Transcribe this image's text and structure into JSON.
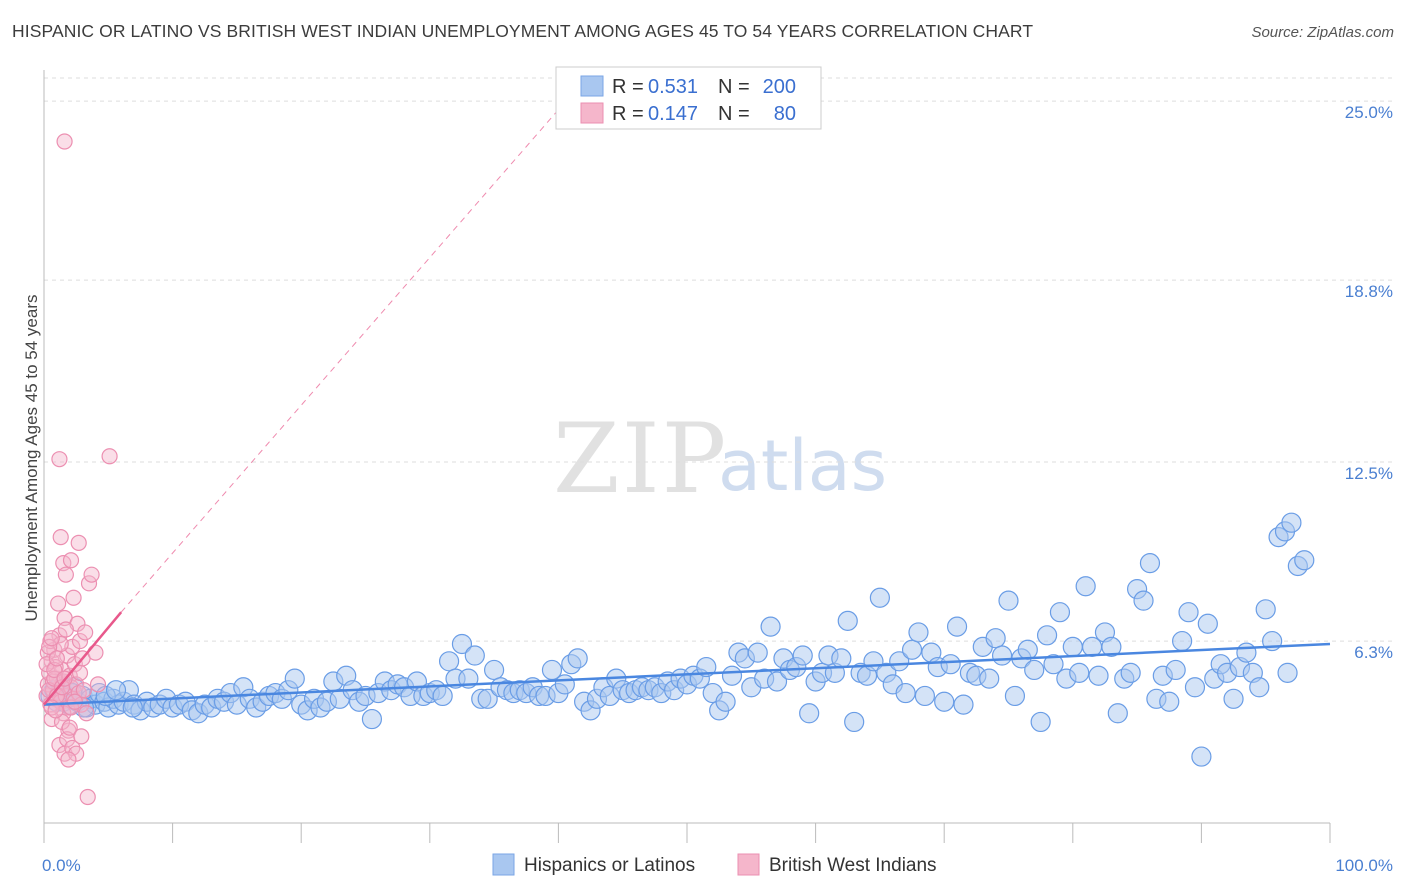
{
  "title": "HISPANIC OR LATINO VS BRITISH WEST INDIAN UNEMPLOYMENT AMONG AGES 45 TO 54 YEARS CORRELATION CHART",
  "source": "Source: ZipAtlas.com",
  "watermark": {
    "part1": "ZIP",
    "part2": "atlas"
  },
  "colors": {
    "blue": "#4a87e0",
    "blue_fill": "#a9c7f0",
    "pink": "#e8588b",
    "pink_fill": "#f5b6cb",
    "axis_text": "#4a7fd1",
    "grid": "#dddddd"
  },
  "legend_top": {
    "rows": [
      {
        "r_label": "R =",
        "r_value": "0.531",
        "n_label": "N =",
        "n_value": "200"
      },
      {
        "r_label": "R =",
        "r_value": "0.147",
        "n_label": "N =",
        "n_value": "80"
      }
    ]
  },
  "legend_bottom": {
    "items": [
      "Hispanics or Latinos",
      "British West Indians"
    ]
  },
  "chart_data": {
    "type": "scatter",
    "title": "HISPANIC OR LATINO VS BRITISH WEST INDIAN UNEMPLOYMENT AMONG AGES 45 TO 54 YEARS CORRELATION CHART",
    "xlabel": "",
    "ylabel": "Unemployment Among Ages 45 to 54 years",
    "xlim": [
      0,
      100
    ],
    "ylim": [
      0,
      25.8
    ],
    "x_tick_labels": [
      "0.0%",
      "100.0%"
    ],
    "y_ticks": [
      6.3,
      12.5,
      18.8,
      25.0
    ],
    "y_tick_labels": [
      "6.3%",
      "12.5%",
      "18.8%",
      "25.0%"
    ],
    "grid": "horizontal dashed",
    "legend_placement": "top-center and bottom",
    "series": [
      {
        "name": "Hispanics or Latinos",
        "color": "#4a87e0",
        "r": 0.531,
        "n": 200,
        "trendline": {
          "x": [
            0,
            100
          ],
          "y": [
            4.1,
            6.2
          ]
        },
        "points": [
          [
            0.5,
            4.4
          ],
          [
            0.8,
            4.6
          ],
          [
            1.0,
            4.2
          ],
          [
            1.3,
            4.8
          ],
          [
            1.5,
            4.5
          ],
          [
            1.8,
            4.3
          ],
          [
            2.0,
            4.1
          ],
          [
            2.3,
            4.7
          ],
          [
            2.6,
            4.2
          ],
          [
            3.0,
            4.4
          ],
          [
            3.3,
            4.0
          ],
          [
            3.6,
            4.3
          ],
          [
            4.0,
            4.1
          ],
          [
            4.3,
            4.5
          ],
          [
            4.7,
            4.2
          ],
          [
            5.0,
            4.0
          ],
          [
            5.4,
            4.3
          ],
          [
            5.8,
            4.1
          ],
          [
            6.2,
            4.2
          ],
          [
            6.6,
            4.6
          ],
          [
            7.0,
            4.1
          ],
          [
            7.5,
            3.9
          ],
          [
            8.0,
            4.2
          ],
          [
            8.5,
            4.0
          ],
          [
            9.0,
            4.1
          ],
          [
            9.5,
            4.3
          ],
          [
            10.0,
            4.0
          ],
          [
            10.5,
            4.1
          ],
          [
            11.0,
            4.2
          ],
          [
            11.5,
            3.9
          ],
          [
            12.0,
            3.8
          ],
          [
            12.5,
            4.1
          ],
          [
            13.0,
            4.0
          ],
          [
            13.5,
            4.3
          ],
          [
            14.0,
            4.2
          ],
          [
            14.5,
            4.5
          ],
          [
            15.0,
            4.1
          ],
          [
            15.5,
            4.7
          ],
          [
            16.0,
            4.3
          ],
          [
            16.5,
            4.0
          ],
          [
            17.0,
            4.2
          ],
          [
            17.5,
            4.4
          ],
          [
            18.0,
            4.5
          ],
          [
            18.5,
            4.3
          ],
          [
            19.0,
            4.6
          ],
          [
            19.5,
            5.0
          ],
          [
            20.0,
            4.1
          ],
          [
            20.5,
            3.9
          ],
          [
            21.0,
            4.3
          ],
          [
            21.5,
            4.0
          ],
          [
            22.0,
            4.2
          ],
          [
            22.5,
            4.9
          ],
          [
            23.0,
            4.3
          ],
          [
            23.5,
            5.1
          ],
          [
            24.0,
            4.6
          ],
          [
            24.5,
            4.2
          ],
          [
            25.0,
            4.4
          ],
          [
            25.5,
            3.6
          ],
          [
            26.0,
            4.5
          ],
          [
            26.5,
            4.9
          ],
          [
            27.0,
            4.6
          ],
          [
            27.5,
            4.8
          ],
          [
            28.0,
            4.7
          ],
          [
            28.5,
            4.4
          ],
          [
            29.0,
            4.9
          ],
          [
            29.5,
            4.4
          ],
          [
            30.0,
            4.5
          ],
          [
            30.5,
            4.6
          ],
          [
            31.0,
            4.4
          ],
          [
            31.5,
            5.6
          ],
          [
            32.0,
            5.0
          ],
          [
            32.5,
            6.2
          ],
          [
            33.0,
            5.0
          ],
          [
            33.5,
            5.8
          ],
          [
            34.0,
            4.3
          ],
          [
            34.5,
            4.3
          ],
          [
            35.0,
            5.3
          ],
          [
            35.5,
            4.7
          ],
          [
            36.0,
            4.6
          ],
          [
            36.5,
            4.5
          ],
          [
            37.0,
            4.6
          ],
          [
            37.5,
            4.5
          ],
          [
            38.0,
            4.7
          ],
          [
            38.5,
            4.4
          ],
          [
            39.0,
            4.4
          ],
          [
            39.5,
            5.3
          ],
          [
            40.0,
            4.5
          ],
          [
            40.5,
            4.8
          ],
          [
            41.0,
            5.5
          ],
          [
            41.5,
            5.7
          ],
          [
            42.0,
            4.2
          ],
          [
            42.5,
            3.9
          ],
          [
            43.0,
            4.3
          ],
          [
            43.5,
            4.7
          ],
          [
            44.0,
            4.4
          ],
          [
            44.5,
            5.0
          ],
          [
            45.0,
            4.6
          ],
          [
            45.5,
            4.5
          ],
          [
            46.0,
            4.6
          ],
          [
            46.5,
            4.7
          ],
          [
            47.0,
            4.6
          ],
          [
            47.5,
            4.7
          ],
          [
            48.0,
            4.5
          ],
          [
            48.5,
            4.9
          ],
          [
            49.0,
            4.6
          ],
          [
            49.5,
            5.0
          ],
          [
            50.0,
            4.8
          ],
          [
            50.5,
            5.1
          ],
          [
            51.0,
            5.0
          ],
          [
            51.5,
            5.4
          ],
          [
            52.0,
            4.5
          ],
          [
            52.5,
            3.9
          ],
          [
            53.0,
            4.2
          ],
          [
            53.5,
            5.1
          ],
          [
            54.0,
            5.9
          ],
          [
            54.5,
            5.7
          ],
          [
            55.0,
            4.7
          ],
          [
            55.5,
            5.9
          ],
          [
            56.0,
            5.0
          ],
          [
            56.5,
            6.8
          ],
          [
            57.0,
            4.9
          ],
          [
            57.5,
            5.7
          ],
          [
            58.0,
            5.3
          ],
          [
            58.5,
            5.4
          ],
          [
            59.0,
            5.8
          ],
          [
            59.5,
            3.8
          ],
          [
            60.0,
            4.9
          ],
          [
            60.5,
            5.2
          ],
          [
            61.0,
            5.8
          ],
          [
            61.5,
            5.2
          ],
          [
            62.0,
            5.7
          ],
          [
            62.5,
            7.0
          ],
          [
            63.0,
            3.5
          ],
          [
            63.5,
            5.2
          ],
          [
            64.0,
            5.1
          ],
          [
            64.5,
            5.6
          ],
          [
            65.0,
            7.8
          ],
          [
            65.5,
            5.2
          ],
          [
            66.0,
            4.8
          ],
          [
            66.5,
            5.6
          ],
          [
            67.0,
            4.5
          ],
          [
            67.5,
            6.0
          ],
          [
            68.0,
            6.6
          ],
          [
            68.5,
            4.4
          ],
          [
            69.0,
            5.9
          ],
          [
            69.5,
            5.4
          ],
          [
            70.0,
            4.2
          ],
          [
            70.5,
            5.5
          ],
          [
            71.0,
            6.8
          ],
          [
            71.5,
            4.1
          ],
          [
            72.0,
            5.2
          ],
          [
            72.5,
            5.1
          ],
          [
            73.0,
            6.1
          ],
          [
            73.5,
            5.0
          ],
          [
            74.0,
            6.4
          ],
          [
            74.5,
            5.8
          ],
          [
            75.0,
            7.7
          ],
          [
            75.5,
            4.4
          ],
          [
            76.0,
            5.7
          ],
          [
            76.5,
            6.0
          ],
          [
            77.0,
            5.3
          ],
          [
            77.5,
            3.5
          ],
          [
            78.0,
            6.5
          ],
          [
            78.5,
            5.5
          ],
          [
            79.0,
            7.3
          ],
          [
            79.5,
            5.0
          ],
          [
            80.0,
            6.1
          ],
          [
            80.5,
            5.2
          ],
          [
            81.0,
            8.2
          ],
          [
            81.5,
            6.1
          ],
          [
            82.0,
            5.1
          ],
          [
            82.5,
            6.6
          ],
          [
            83.0,
            6.1
          ],
          [
            83.5,
            3.8
          ],
          [
            84.0,
            5.0
          ],
          [
            84.5,
            5.2
          ],
          [
            85.0,
            8.1
          ],
          [
            85.5,
            7.7
          ],
          [
            86.0,
            9.0
          ],
          [
            86.5,
            4.3
          ],
          [
            87.0,
            5.1
          ],
          [
            87.5,
            4.2
          ],
          [
            88.0,
            5.3
          ],
          [
            88.5,
            6.3
          ],
          [
            89.0,
            7.3
          ],
          [
            89.5,
            4.7
          ],
          [
            90.0,
            2.3
          ],
          [
            90.5,
            6.9
          ],
          [
            91.0,
            5.0
          ],
          [
            91.5,
            5.5
          ],
          [
            92.0,
            5.2
          ],
          [
            92.5,
            4.3
          ],
          [
            93.0,
            5.4
          ],
          [
            93.5,
            5.9
          ],
          [
            94.0,
            5.2
          ],
          [
            94.5,
            4.7
          ],
          [
            95.0,
            7.4
          ],
          [
            95.5,
            6.3
          ],
          [
            96.0,
            9.9
          ],
          [
            96.5,
            10.1
          ],
          [
            97.0,
            10.4
          ],
          [
            97.5,
            8.9
          ],
          [
            98.0,
            9.1
          ],
          [
            96.7,
            5.2
          ],
          [
            1.5,
            4.2
          ],
          [
            2.2,
            4.5
          ],
          [
            3.1,
            4.0
          ],
          [
            4.8,
            4.4
          ],
          [
            5.6,
            4.6
          ],
          [
            6.9,
            4.0
          ]
        ]
      },
      {
        "name": "British West Indians",
        "color": "#e8588b",
        "r": 0.147,
        "n": 80,
        "trendline": {
          "x": [
            0,
            6
          ],
          "y": [
            4.1,
            7.3
          ]
        },
        "trendline_extended": {
          "x": [
            0,
            60
          ],
          "y": [
            4.1,
            35.0
          ]
        },
        "points": [
          [
            0.2,
            4.4
          ],
          [
            0.3,
            4.8
          ],
          [
            0.4,
            5.2
          ],
          [
            0.5,
            4.1
          ],
          [
            0.6,
            5.6
          ],
          [
            0.7,
            4.6
          ],
          [
            0.8,
            6.0
          ],
          [
            0.9,
            4.3
          ],
          [
            1.0,
            5.0
          ],
          [
            1.1,
            4.5
          ],
          [
            1.2,
            6.5
          ],
          [
            1.3,
            4.2
          ],
          [
            1.4,
            5.3
          ],
          [
            1.5,
            4.9
          ],
          [
            1.6,
            7.1
          ],
          [
            1.7,
            4.4
          ],
          [
            1.8,
            5.8
          ],
          [
            1.9,
            4.0
          ],
          [
            2.0,
            5.1
          ],
          [
            2.1,
            4.7
          ],
          [
            2.2,
            6.1
          ],
          [
            2.3,
            4.3
          ],
          [
            2.4,
            5.5
          ],
          [
            2.5,
            4.8
          ],
          [
            2.6,
            6.9
          ],
          [
            2.7,
            4.5
          ],
          [
            2.8,
            5.2
          ],
          [
            2.9,
            4.1
          ],
          [
            3.0,
            5.7
          ],
          [
            3.1,
            4.6
          ],
          [
            0.3,
            5.9
          ],
          [
            0.5,
            6.3
          ],
          [
            0.7,
            4.9
          ],
          [
            0.9,
            5.4
          ],
          [
            1.1,
            7.6
          ],
          [
            1.3,
            6.2
          ],
          [
            1.5,
            3.8
          ],
          [
            1.7,
            6.7
          ],
          [
            1.9,
            3.2
          ],
          [
            2.1,
            4.0
          ],
          [
            0.4,
            4.6
          ],
          [
            0.6,
            3.6
          ],
          [
            0.8,
            5.0
          ],
          [
            1.0,
            4.4
          ],
          [
            1.2,
            2.7
          ],
          [
            1.4,
            3.5
          ],
          [
            1.6,
            2.4
          ],
          [
            1.8,
            2.9
          ],
          [
            2.0,
            3.3
          ],
          [
            2.2,
            2.6
          ],
          [
            1.3,
            9.9
          ],
          [
            1.5,
            9.0
          ],
          [
            1.7,
            8.6
          ],
          [
            2.1,
            9.1
          ],
          [
            2.3,
            7.8
          ],
          [
            2.7,
            9.7
          ],
          [
            3.5,
            8.3
          ],
          [
            3.7,
            8.6
          ],
          [
            4.0,
            5.9
          ],
          [
            4.2,
            4.8
          ],
          [
            1.2,
            12.6
          ],
          [
            5.1,
            12.7
          ],
          [
            1.6,
            23.6
          ],
          [
            3.4,
            0.9
          ],
          [
            2.5,
            2.4
          ],
          [
            1.9,
            2.2
          ],
          [
            0.6,
            4.0
          ],
          [
            0.9,
            3.9
          ],
          [
            2.9,
            3.0
          ],
          [
            3.3,
            3.8
          ],
          [
            0.2,
            5.5
          ],
          [
            0.4,
            6.1
          ],
          [
            0.6,
            6.4
          ],
          [
            0.8,
            5.3
          ],
          [
            1.0,
            5.7
          ],
          [
            2.4,
            4.2
          ],
          [
            2.8,
            6.3
          ],
          [
            3.2,
            6.6
          ],
          [
            1.4,
            4.7
          ],
          [
            1.6,
            5.0
          ]
        ]
      }
    ]
  }
}
